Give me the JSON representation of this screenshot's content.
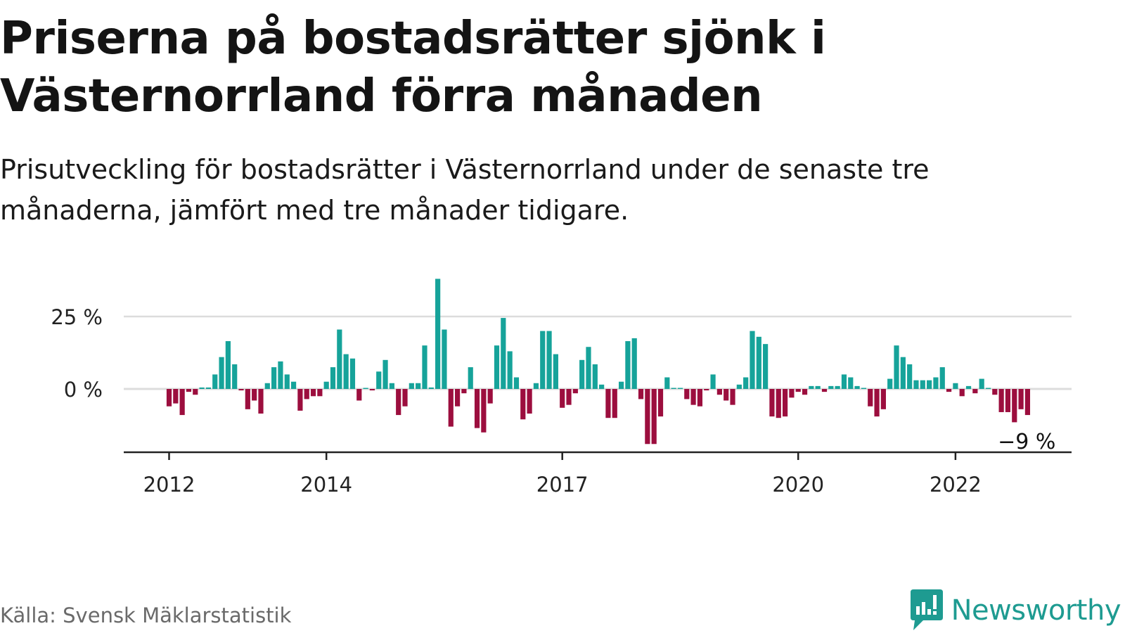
{
  "title": "Priserna på bostadsrätter sjönk i Västernorrland förra månaden",
  "subtitle": "Prisutveckling för bostadsrätter i Västernorrland under de senaste tre månaderna, jämfört med tre månader tidigare.",
  "source": "Källa: Svensk Mäklarstatistik",
  "brand": {
    "name": "Newsworthy",
    "icon": "newsworthy-logo-icon",
    "color": "#1e9b91"
  },
  "colors": {
    "positive": "#16a39a",
    "negative": "#9c0e3e",
    "grid": "#dcdcdc",
    "axis": "#222222"
  },
  "chart_data": {
    "type": "bar",
    "unit": "%",
    "x_start": "2012-01",
    "x_frequency": "monthly",
    "y_ticks": [
      0,
      25
    ],
    "y_tick_labels": [
      "0 %",
      "25 %"
    ],
    "x_ticks": [
      "2012",
      "2014",
      "2017",
      "2020",
      "2022"
    ],
    "annotation": {
      "label": "−9 %",
      "value": -9
    },
    "values": [
      -6,
      -5,
      -9,
      -1,
      -2,
      0.5,
      0.5,
      5,
      11,
      16.5,
      8.5,
      -0.5,
      -7,
      -4,
      -8.5,
      2,
      7.5,
      9.5,
      5,
      2.5,
      -7.5,
      -3.5,
      -2.5,
      -2.5,
      2.5,
      7.5,
      20.5,
      12,
      10.5,
      -4,
      0.3,
      -0.5,
      6,
      10,
      2,
      -9,
      -6,
      2,
      2,
      15,
      0.5,
      38,
      20.5,
      -13,
      -6,
      -1.5,
      7.5,
      -13.5,
      -15,
      -5,
      15,
      24.5,
      13,
      4,
      -10.5,
      -8.5,
      2,
      20,
      20,
      12,
      -6.5,
      -5.5,
      -1.5,
      10,
      14.5,
      8.5,
      1.5,
      -10,
      -10,
      2.5,
      16.5,
      17.5,
      -3.5,
      -19,
      -19,
      -9.5,
      4,
      0.3,
      0.3,
      -3.5,
      -5.5,
      -6,
      -0.5,
      5,
      -2,
      -4,
      -5.5,
      1.5,
      4,
      20,
      18,
      15.5,
      -9.5,
      -10,
      -9.5,
      -3,
      -1,
      -2,
      1,
      1,
      -1,
      1,
      1,
      5,
      4,
      1,
      0.3,
      -6,
      -9.5,
      -7,
      3.5,
      15,
      11,
      8.5,
      3,
      3,
      3,
      4,
      7.5,
      -1,
      2,
      -2.5,
      1,
      -1.5,
      3.5,
      0.3,
      -2,
      -8,
      -8,
      -11.5,
      -7,
      -9
    ]
  }
}
